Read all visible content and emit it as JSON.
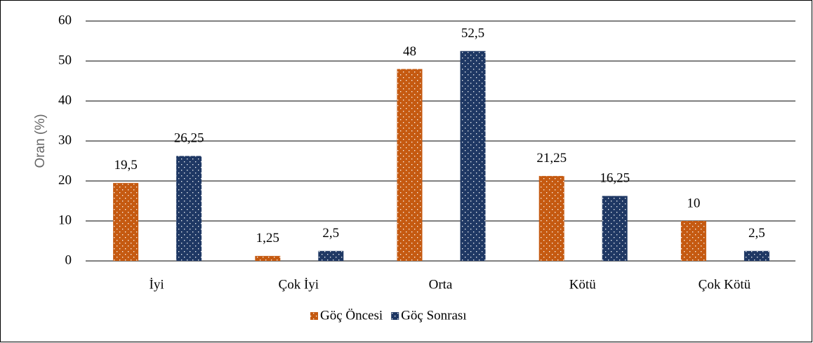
{
  "chart_data": {
    "type": "bar",
    "y_label": "Oran (%)",
    "categories": [
      "İyi",
      "Çok İyi",
      "Orta",
      "Kötü",
      "Çok Kötü"
    ],
    "series": [
      {
        "name": "Göç Öncesi",
        "color": "#c55a11",
        "values": [
          19.5,
          1.25,
          48,
          21.25,
          10
        ],
        "value_labels": [
          "19,5",
          "1,25",
          "48",
          "21,25",
          "10"
        ]
      },
      {
        "name": "Göç Sonrası",
        "color": "#1f3864",
        "values": [
          26.25,
          2.5,
          52.5,
          16.25,
          2.5
        ],
        "value_labels": [
          "26,25",
          "2,5",
          "52,5",
          "16,25",
          "2,5"
        ]
      }
    ],
    "ylim": [
      0,
      60
    ],
    "yticks": [
      0,
      10,
      20,
      30,
      40,
      50,
      60
    ],
    "grid": true,
    "legend": "bottom"
  }
}
